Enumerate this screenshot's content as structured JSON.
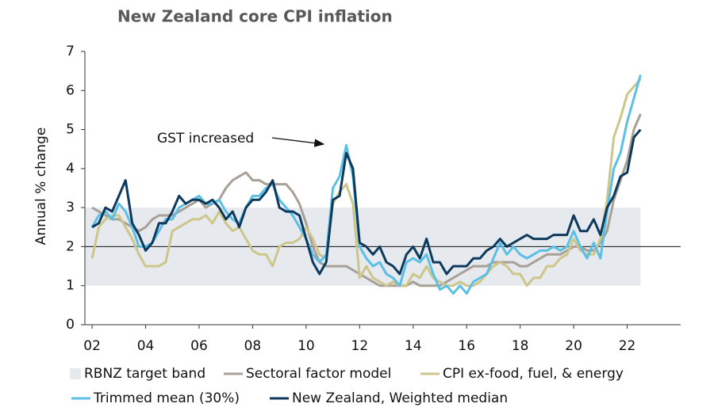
{
  "chart_data": {
    "type": "line",
    "title": "New Zealand core CPI inflation",
    "y_label": "Annual % change",
    "annotation": "GST increased",
    "x": [
      2002,
      2002.25,
      2002.5,
      2002.75,
      2003,
      2003.25,
      2003.5,
      2003.75,
      2004,
      2004.25,
      2004.5,
      2004.75,
      2005,
      2005.25,
      2005.5,
      2005.75,
      2006,
      2006.25,
      2006.5,
      2006.75,
      2007,
      2007.25,
      2007.5,
      2007.75,
      2008,
      2008.25,
      2008.5,
      2008.75,
      2009,
      2009.25,
      2009.5,
      2009.75,
      2010,
      2010.25,
      2010.5,
      2010.75,
      2011,
      2011.25,
      2011.5,
      2011.75,
      2012,
      2012.25,
      2012.5,
      2012.75,
      2013,
      2013.25,
      2013.5,
      2013.75,
      2014,
      2014.25,
      2014.5,
      2014.75,
      2015,
      2015.25,
      2015.5,
      2015.75,
      2016,
      2016.25,
      2016.5,
      2016.75,
      2017,
      2017.25,
      2017.5,
      2017.75,
      2018,
      2018.25,
      2018.5,
      2018.75,
      2019,
      2019.25,
      2019.5,
      2019.75,
      2020,
      2020.25,
      2020.5,
      2020.75,
      2021,
      2021.25,
      2021.5,
      2021.75,
      2022,
      2022.25,
      2022.5
    ],
    "xlim": [
      2001.73,
      2024
    ],
    "xticks": [
      {
        "value": 2002,
        "label": "02"
      },
      {
        "value": 2004,
        "label": "04"
      },
      {
        "value": 2006,
        "label": "06"
      },
      {
        "value": 2008,
        "label": "08"
      },
      {
        "value": 2010,
        "label": "10"
      },
      {
        "value": 2012,
        "label": "12"
      },
      {
        "value": 2014,
        "label": "14"
      },
      {
        "value": 2016,
        "label": "16"
      },
      {
        "value": 2018,
        "label": "18"
      },
      {
        "value": 2020,
        "label": "20"
      },
      {
        "value": 2022,
        "label": "22"
      }
    ],
    "ylim": [
      0,
      7
    ],
    "yticks": [
      0,
      1,
      2,
      3,
      4,
      5,
      6,
      7
    ],
    "band": {
      "name": "RBNZ target band",
      "range": [
        1,
        3
      ],
      "color": "#e6e9ee"
    },
    "reference_line": 2,
    "series": [
      {
        "name": "Sectoral factor model",
        "color": "#a89f96",
        "values": [
          3.0,
          2.9,
          2.8,
          2.7,
          2.7,
          2.6,
          2.5,
          2.4,
          2.5,
          2.7,
          2.8,
          2.8,
          2.8,
          2.9,
          3.0,
          3.1,
          3.2,
          3.0,
          3.1,
          3.2,
          3.5,
          3.7,
          3.8,
          3.9,
          3.7,
          3.7,
          3.6,
          3.6,
          3.6,
          3.6,
          3.4,
          3.1,
          2.6,
          2.0,
          1.6,
          1.5,
          1.5,
          1.5,
          1.5,
          1.4,
          1.3,
          1.2,
          1.1,
          1.0,
          1.0,
          1.0,
          1.0,
          1.0,
          1.1,
          1.0,
          1.0,
          1.0,
          1.0,
          1.1,
          1.2,
          1.3,
          1.4,
          1.5,
          1.5,
          1.5,
          1.6,
          1.6,
          1.6,
          1.6,
          1.5,
          1.5,
          1.6,
          1.7,
          1.8,
          1.8,
          1.8,
          1.9,
          2.0,
          2.0,
          1.9,
          1.9,
          2.1,
          2.4,
          3.2,
          3.7,
          4.2,
          5.0,
          5.4
        ]
      },
      {
        "name": "CPI ex-food, fuel, & energy",
        "color": "#cdc68a",
        "values": [
          1.7,
          2.5,
          2.7,
          2.8,
          2.8,
          2.5,
          2.2,
          1.8,
          1.5,
          1.5,
          1.5,
          1.6,
          2.4,
          2.5,
          2.6,
          2.7,
          2.7,
          2.8,
          2.6,
          2.9,
          2.6,
          2.4,
          2.5,
          2.2,
          1.9,
          1.8,
          1.8,
          1.5,
          2.0,
          2.1,
          2.1,
          2.2,
          2.5,
          2.2,
          1.8,
          1.7,
          3.1,
          3.4,
          3.6,
          3.1,
          1.2,
          1.5,
          1.2,
          1.1,
          1.0,
          1.1,
          1.0,
          1.0,
          1.3,
          1.2,
          1.5,
          1.2,
          1.1,
          1.0,
          1.0,
          1.1,
          1.0,
          1.0,
          1.1,
          1.3,
          1.5,
          1.6,
          1.5,
          1.3,
          1.3,
          1.0,
          1.2,
          1.2,
          1.5,
          1.5,
          1.7,
          1.8,
          2.2,
          1.9,
          1.8,
          1.8,
          2.2,
          3.2,
          4.8,
          5.3,
          5.9,
          6.1,
          6.3
        ]
      },
      {
        "name": "Trimmed mean (30%)",
        "color": "#5bbfe6",
        "values": [
          2.5,
          2.8,
          2.9,
          2.7,
          3.1,
          2.9,
          2.5,
          2.0,
          2.0,
          2.1,
          2.4,
          2.7,
          2.7,
          3.0,
          3.1,
          3.2,
          3.3,
          3.1,
          3.1,
          3.2,
          2.9,
          2.7,
          2.6,
          3.0,
          3.3,
          3.3,
          3.5,
          3.6,
          3.2,
          3.0,
          2.8,
          2.5,
          2.2,
          1.8,
          1.6,
          1.8,
          3.5,
          3.8,
          4.6,
          3.8,
          2.0,
          1.7,
          1.5,
          1.6,
          1.3,
          1.2,
          1.0,
          1.6,
          1.7,
          1.6,
          1.8,
          1.3,
          0.9,
          1.0,
          0.8,
          1.0,
          0.8,
          1.1,
          1.2,
          1.3,
          1.7,
          2.1,
          1.8,
          2.0,
          1.8,
          1.7,
          1.8,
          1.9,
          1.9,
          2.0,
          1.9,
          2.0,
          2.4,
          2.0,
          1.7,
          2.1,
          1.7,
          2.9,
          4.0,
          4.4,
          5.2,
          5.8,
          6.4
        ]
      },
      {
        "name": "New Zealand, Weighted median",
        "color": "#0d3a5c",
        "values": [
          2.5,
          2.6,
          3.0,
          2.9,
          3.3,
          3.7,
          2.6,
          2.3,
          1.9,
          2.1,
          2.6,
          2.6,
          2.9,
          3.3,
          3.1,
          3.2,
          3.2,
          3.1,
          3.2,
          3.0,
          2.7,
          2.9,
          2.5,
          3.0,
          3.2,
          3.2,
          3.4,
          3.7,
          3.0,
          2.9,
          2.9,
          2.8,
          2.2,
          1.6,
          1.3,
          1.6,
          3.2,
          3.3,
          4.4,
          4.0,
          2.1,
          2.0,
          1.8,
          2.0,
          1.6,
          1.5,
          1.3,
          1.8,
          2.0,
          1.7,
          2.2,
          1.6,
          1.6,
          1.3,
          1.5,
          1.5,
          1.5,
          1.7,
          1.7,
          1.9,
          2.0,
          2.2,
          2.0,
          2.1,
          2.2,
          2.3,
          2.2,
          2.2,
          2.2,
          2.3,
          2.3,
          2.3,
          2.8,
          2.4,
          2.4,
          2.7,
          2.3,
          3.0,
          3.3,
          3.8,
          3.9,
          4.8,
          5.0
        ]
      }
    ]
  }
}
